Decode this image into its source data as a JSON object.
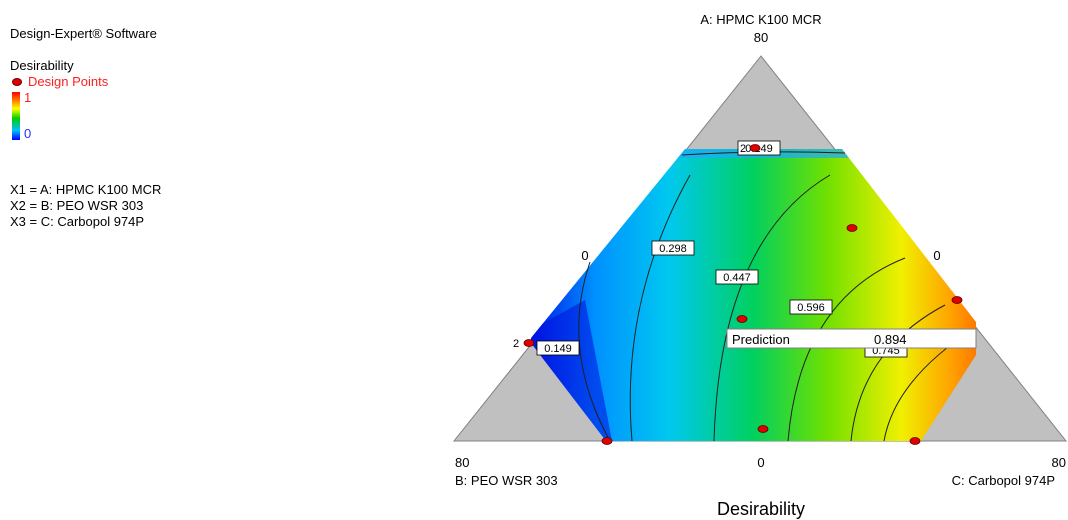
{
  "legend": {
    "software": "Design-Expert® Software",
    "response": "Desirability",
    "design_points": "Design Points",
    "scale_max": "1",
    "scale_min": "0",
    "factors": [
      "X1 = A: HPMC K100 MCR",
      "X2 = B: PEO WSR 303",
      "X3 = C: Carbopol 974P"
    ]
  },
  "chart_data": {
    "type": "heatmap",
    "title": "Desirability",
    "vertices": {
      "top": {
        "name": "A: HPMC K100 MCR",
        "value": "80"
      },
      "left": {
        "name": "B: PEO WSR 303",
        "value": "80"
      },
      "right": {
        "name": "C: Carbopol 974P",
        "value": "80"
      }
    },
    "edge_labels": {
      "left_edge": "0",
      "right_edge": "0",
      "bottom_edge": "0"
    },
    "contour_levels": [
      "0.149",
      "0.298",
      "0.447",
      "0.596",
      "0.745"
    ],
    "top_contour_label": "0.149",
    "point_count_labels": [
      "2",
      "2"
    ],
    "prediction": {
      "label": "Prediction",
      "value": "0.894"
    },
    "colors": {
      "region": "#c0c0c0",
      "point": "#e00000",
      "low": "#0000ff",
      "high": "#ff0000"
    }
  }
}
